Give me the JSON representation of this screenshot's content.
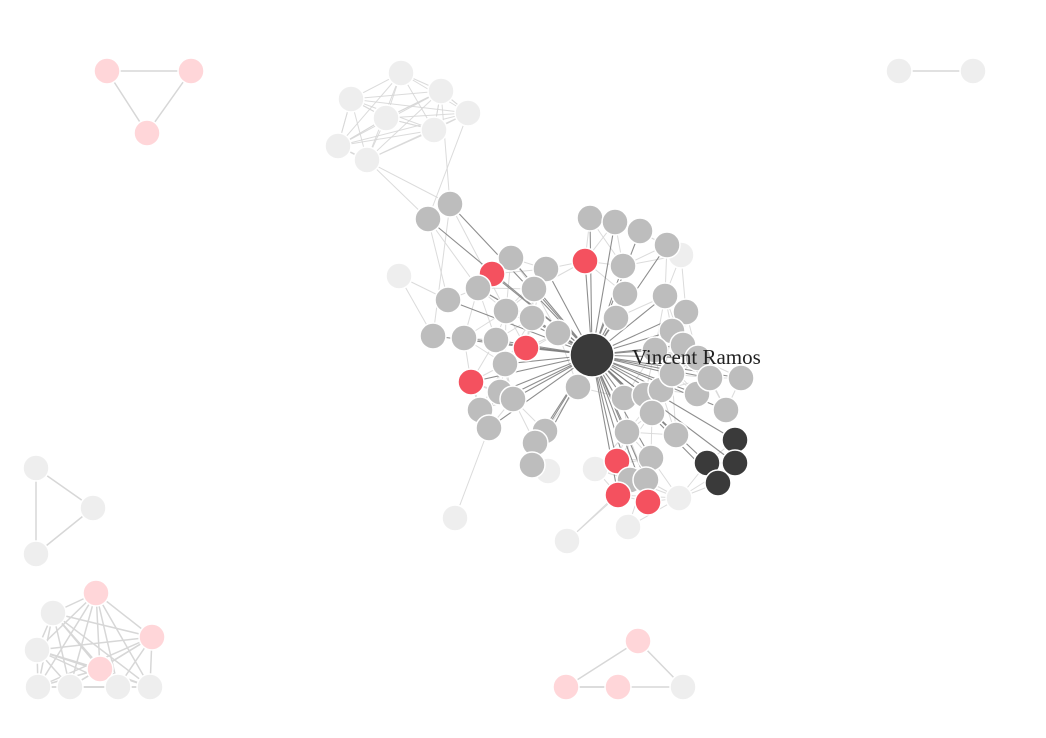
{
  "graph": {
    "focus_label": "Vincent Ramos"
  },
  "colors": {
    "background": "#ffffff",
    "focus_node": "#3a3a3a",
    "neighbor_node": "#bdbdbd",
    "faded_node": "#eeeeee",
    "highlight_red": "#f4515f",
    "faded_red": "#ffd6d9",
    "edge_dark": "#7a7a7a",
    "edge_light": "#d7d7d7"
  }
}
